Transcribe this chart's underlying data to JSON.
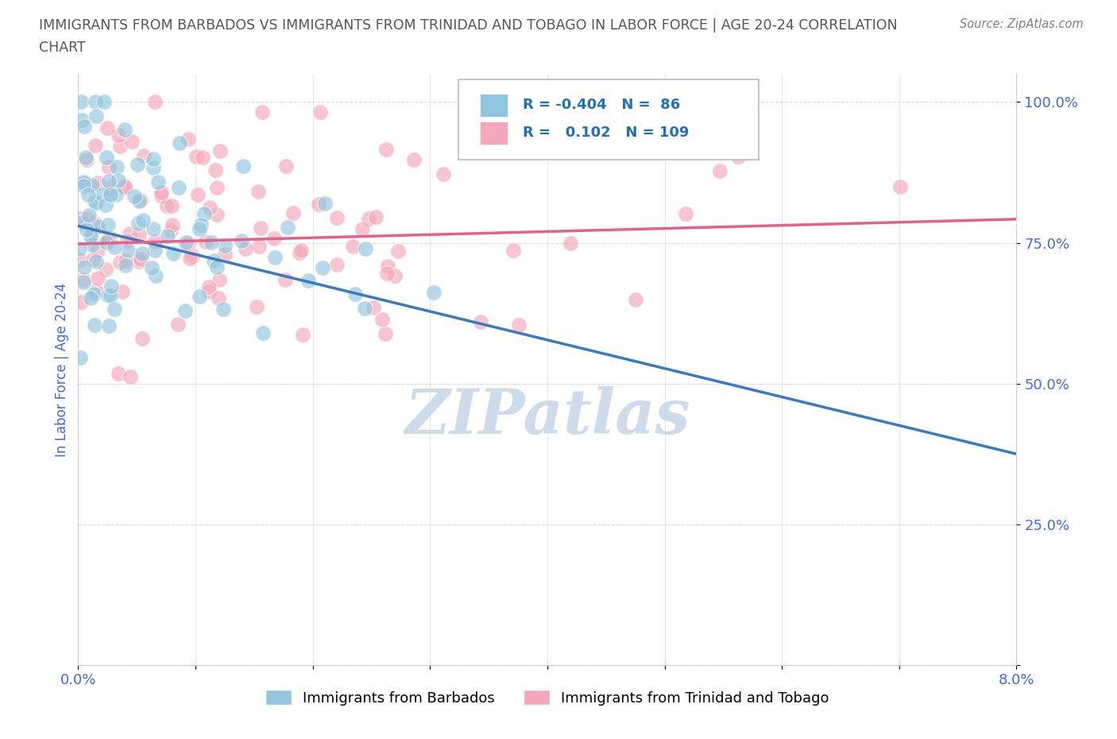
{
  "title_line1": "IMMIGRANTS FROM BARBADOS VS IMMIGRANTS FROM TRINIDAD AND TOBAGO IN LABOR FORCE | AGE 20-24 CORRELATION",
  "title_line2": "CHART",
  "source": "Source: ZipAtlas.com",
  "ylabel": "In Labor Force | Age 20-24",
  "xlim": [
    0.0,
    0.08
  ],
  "ylim": [
    0.0,
    1.05
  ],
  "xticks": [
    0.0,
    0.01,
    0.02,
    0.03,
    0.04,
    0.05,
    0.06,
    0.07,
    0.08
  ],
  "xticklabels": [
    "0.0%",
    "",
    "",
    "",
    "",
    "",
    "",
    "",
    "8.0%"
  ],
  "yticks": [
    0.0,
    0.25,
    0.5,
    0.75,
    1.0
  ],
  "yticklabels": [
    "",
    "25.0%",
    "50.0%",
    "75.0%",
    "100.0%"
  ],
  "barbados_color": "#92c5de",
  "tobago_color": "#f4a7b9",
  "barbados_R": -0.404,
  "barbados_N": 86,
  "tobago_R": 0.102,
  "tobago_N": 109,
  "barbados_line_color": "#3a7bbf",
  "tobago_line_color": "#e8608a",
  "blue_line_x0": 0.0,
  "blue_line_y0": 0.78,
  "blue_line_x1": 0.08,
  "blue_line_y1": 0.375,
  "pink_line_x0": 0.0,
  "pink_line_y0": 0.748,
  "pink_line_x1": 0.08,
  "pink_line_y1": 0.792,
  "watermark": "ZIPatlas",
  "watermark_color": "#c8d8e8",
  "legend_R_color": "#2171b5",
  "background_color": "#ffffff",
  "grid_color": "#d0d0d0",
  "title_color": "#555555",
  "axis_label_color": "#4169e1",
  "tick_color": "#4169e1",
  "seed_barbados": 42,
  "seed_tobago": 99
}
